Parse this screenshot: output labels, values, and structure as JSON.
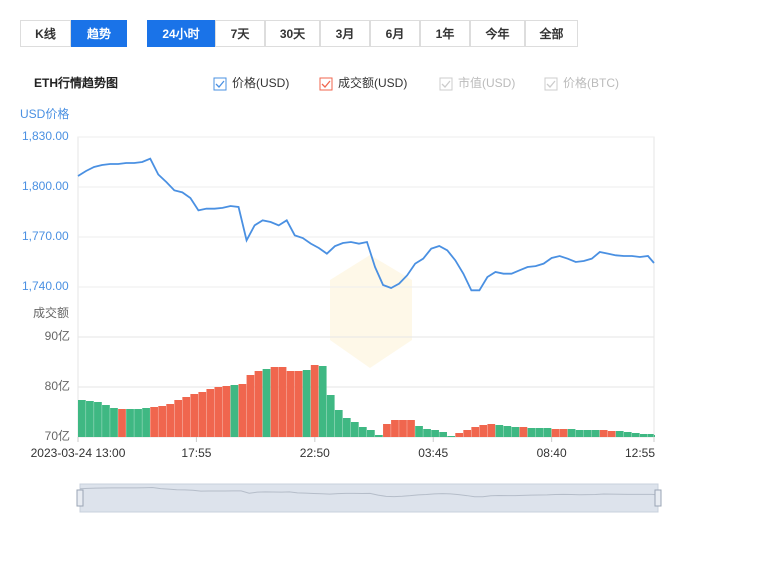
{
  "ui": {
    "view_tabs": [
      "K线",
      "趋势"
    ],
    "active_view": 1,
    "range_tabs": [
      "24小时",
      "7天",
      "30天",
      "3月",
      "6月",
      "1年",
      "今年",
      "全部"
    ],
    "active_range": 0
  },
  "chart_data": {
    "type": "line",
    "title": "ETH行情趋势图",
    "x": [
      0,
      20,
      40,
      60,
      80,
      100,
      120,
      140,
      160,
      180,
      200,
      220,
      240,
      260,
      280,
      300,
      320,
      340,
      360,
      380,
      400,
      420,
      440,
      460,
      480,
      500,
      520,
      540,
      560,
      580,
      600,
      620,
      640,
      660,
      680,
      700,
      720,
      740,
      760,
      780,
      800,
      820,
      840,
      860,
      880,
      900,
      920,
      940,
      960,
      980,
      1000,
      1020,
      1040,
      1060,
      1080,
      1100,
      1120,
      1140,
      1160,
      1180,
      1200,
      1220,
      1240,
      1260,
      1280,
      1300,
      1320,
      1340,
      1360,
      1380,
      1400,
      1420,
      1435
    ],
    "xlim": [
      0,
      1435
    ],
    "xticks": [
      {
        "value": 0,
        "label": "2023-03-24 13:00"
      },
      {
        "value": 295,
        "label": "17:55"
      },
      {
        "value": 590,
        "label": "22:50"
      },
      {
        "value": 885,
        "label": "03:45"
      },
      {
        "value": 1180,
        "label": "08:40"
      },
      {
        "value": 1435,
        "label": "12:55"
      }
    ],
    "ylabel": "USD价格",
    "ylim": [
      1710,
      1830
    ],
    "yticks": [
      {
        "value": 1740,
        "label": "1,740.00"
      },
      {
        "value": 1770,
        "label": "1,770.00"
      },
      {
        "value": 1800,
        "label": "1,800.00"
      },
      {
        "value": 1830,
        "label": "1,830.00"
      }
    ],
    "y2label": "成交额",
    "y2lim": [
      70,
      90
    ],
    "y2ticks": [
      {
        "value": 70,
        "label": "70亿"
      },
      {
        "value": 80,
        "label": "80亿"
      },
      {
        "value": 90,
        "label": "90亿"
      }
    ],
    "series": [
      {
        "name": "价格(USD)",
        "color": "#4a90e2",
        "values": [
          1806.6,
          1809.6,
          1812,
          1813.2,
          1813.8,
          1813.8,
          1814.4,
          1814.4,
          1815,
          1817,
          1807.5,
          1803,
          1798,
          1796.8,
          1793.4,
          1786,
          1787,
          1787,
          1787.5,
          1788.6,
          1788,
          1768,
          1777,
          1780,
          1779,
          1777,
          1780,
          1771,
          1769.4,
          1766,
          1763.4,
          1760,
          1764.5,
          1766.4,
          1767,
          1766,
          1767,
          1752,
          1741.2,
          1739.4,
          1742,
          1747,
          1754,
          1757,
          1763,
          1764.6,
          1762,
          1756,
          1748,
          1738,
          1738,
          1746,
          1749,
          1748,
          1748,
          1750,
          1752,
          1752.5,
          1754,
          1757.4,
          1758.6,
          1757,
          1755,
          1755.6,
          1757,
          1761,
          1760,
          1759,
          1758.6,
          1758.6,
          1758,
          1758.6,
          1754.4
        ]
      },
      {
        "name": "成交额(USD)",
        "color": "#f0664e",
        "axis": "y2",
        "type": "bar",
        "values": [
          77.4,
          77.2,
          77,
          76.4,
          75.8,
          75.6,
          75.6,
          75.6,
          75.8,
          76,
          76.2,
          76.6,
          77.4,
          78,
          78.6,
          79,
          79.6,
          80,
          80.2,
          80.4,
          80.6,
          82.4,
          83.2,
          83.6,
          84,
          84,
          83.2,
          83.2,
          83.4,
          84.4,
          84.2,
          78.4,
          75.4,
          73.8,
          73,
          72,
          71.4,
          70.4,
          72.6,
          73.4,
          73.4,
          73.4,
          72.2,
          71.6,
          71.4,
          71,
          70.2,
          70.8,
          71.4,
          72,
          72.4,
          72.6,
          72.4,
          72.2,
          72,
          72,
          71.8,
          71.8,
          71.8,
          71.6,
          71.6,
          71.6,
          71.4,
          71.4,
          71.4,
          71.4,
          71.2,
          71.2,
          71,
          70.8,
          70.6,
          70.6,
          70.4
        ],
        "bar_colors": [
          "#3fb883",
          "#3fb883",
          "#3fb883",
          "#3fb883",
          "#3fb883",
          "#f0664e",
          "#3fb883",
          "#3fb883",
          "#3fb883",
          "#f0664e",
          "#f0664e",
          "#f0664e",
          "#f0664e",
          "#f0664e",
          "#f0664e",
          "#f0664e",
          "#f0664e",
          "#f0664e",
          "#f0664e",
          "#3fb883",
          "#f0664e",
          "#f0664e",
          "#f0664e",
          "#3fb883",
          "#f0664e",
          "#f0664e",
          "#f0664e",
          "#f0664e",
          "#3fb883",
          "#f0664e",
          "#3fb883",
          "#3fb883",
          "#3fb883",
          "#3fb883",
          "#3fb883",
          "#3fb883",
          "#3fb883",
          "#3fb883",
          "#f0664e",
          "#f0664e",
          "#f0664e",
          "#f0664e",
          "#3fb883",
          "#3fb883",
          "#3fb883",
          "#3fb883",
          "#3fb883",
          "#f0664e",
          "#f0664e",
          "#f0664e",
          "#f0664e",
          "#f0664e",
          "#3fb883",
          "#3fb883",
          "#3fb883",
          "#f0664e",
          "#3fb883",
          "#3fb883",
          "#3fb883",
          "#f0664e",
          "#f0664e",
          "#3fb883",
          "#3fb883",
          "#3fb883",
          "#3fb883",
          "#f0664e",
          "#f0664e",
          "#3fb883",
          "#3fb883",
          "#3fb883",
          "#3fb883",
          "#3fb883",
          "#3fb883"
        ]
      }
    ],
    "inactive_legend": [
      "市值(USD)",
      "价格(BTC)"
    ],
    "grid": true
  }
}
